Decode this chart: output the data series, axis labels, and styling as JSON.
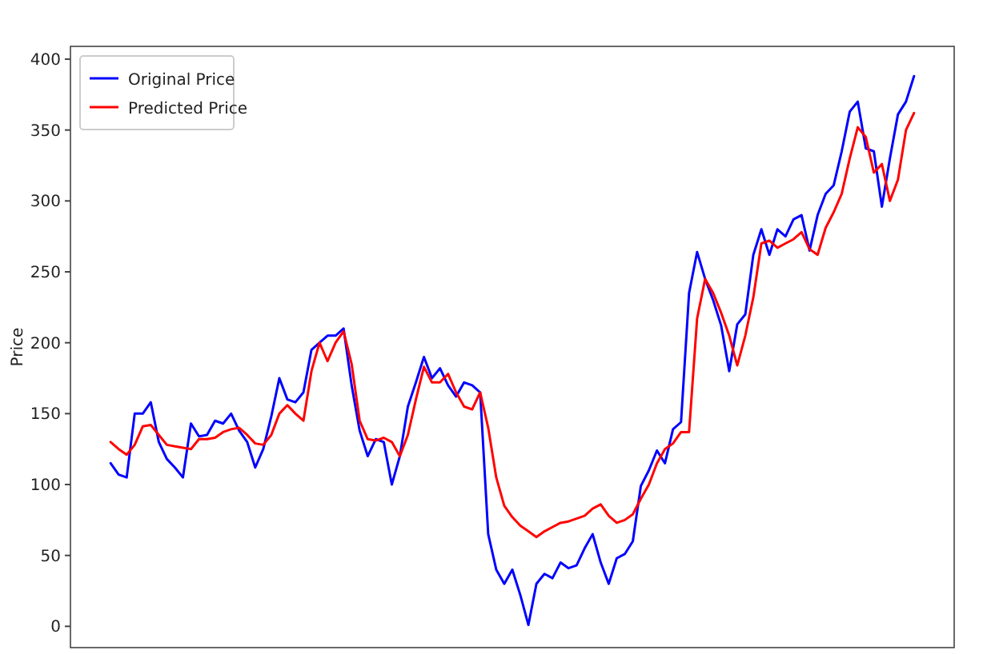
{
  "chart_data": {
    "type": "line",
    "ylabel": "Price",
    "categories": [
      null,
      null,
      null,
      null,
      null,
      null,
      null,
      null,
      null,
      null,
      null,
      null,
      null,
      null,
      null,
      null,
      null,
      null,
      null,
      null,
      null,
      null,
      null,
      null,
      null,
      null,
      null,
      null,
      null,
      null,
      null,
      null,
      null,
      null,
      null,
      null,
      null,
      null,
      null,
      null,
      null,
      null,
      null,
      null,
      null,
      null,
      null,
      null,
      null,
      null,
      null,
      null,
      null,
      null,
      null,
      null,
      null,
      null,
      null,
      null,
      null,
      null,
      null,
      null,
      null,
      null,
      null,
      null,
      null,
      null,
      null,
      null,
      null,
      null,
      null,
      null,
      null,
      null,
      null,
      null,
      null,
      null,
      null,
      null,
      null,
      null,
      null,
      null,
      null,
      null,
      null,
      null,
      null,
      null,
      null,
      null,
      null,
      null,
      null,
      null,
      null
    ],
    "series": [
      {
        "name": "Original Price",
        "color": "#0000ff",
        "values": [
          115,
          107,
          105,
          150,
          150,
          158,
          130,
          118,
          112,
          105,
          143,
          134,
          135,
          145,
          143,
          150,
          138,
          130,
          112,
          125,
          148,
          175,
          160,
          158,
          165,
          195,
          200,
          205,
          205,
          210,
          170,
          138,
          120,
          132,
          130,
          100,
          120,
          155,
          172,
          190,
          175,
          182,
          170,
          162,
          172,
          170,
          165,
          65,
          40,
          30,
          40,
          22,
          1,
          30,
          37,
          34,
          45,
          41,
          43,
          55,
          65,
          45,
          30,
          48,
          51,
          60,
          99,
          110,
          124,
          115,
          139,
          144,
          235,
          264,
          245,
          230,
          212,
          180,
          213,
          220,
          262,
          280,
          262,
          280,
          275,
          287,
          290,
          265,
          290,
          305,
          311,
          335,
          363,
          370,
          337,
          335,
          296,
          330,
          361,
          370,
          388
        ]
      },
      {
        "name": "Predicted Price",
        "color": "#ff0000",
        "values": [
          130,
          125,
          121,
          128,
          141,
          142,
          135,
          128,
          127,
          126,
          125,
          132,
          132,
          133,
          137,
          139,
          140,
          135,
          129,
          128,
          135,
          150,
          156,
          150,
          145,
          180,
          200,
          187,
          200,
          208,
          185,
          145,
          132,
          131,
          133,
          130,
          120,
          135,
          160,
          183,
          172,
          172,
          178,
          165,
          155,
          153,
          165,
          140,
          105,
          85,
          77,
          71,
          67,
          63,
          67,
          70,
          73,
          74,
          76,
          78,
          83,
          86,
          78,
          73,
          75,
          79,
          90,
          100,
          115,
          125,
          129,
          137,
          137,
          217,
          245,
          235,
          221,
          205,
          184,
          205,
          232,
          270,
          272,
          267,
          270,
          273,
          278,
          266,
          262,
          281,
          292,
          305,
          330,
          352,
          345,
          320,
          326,
          300,
          315,
          350,
          362
        ]
      }
    ],
    "ylim": [
      -15,
      409
    ],
    "yticks": [
      0,
      50,
      100,
      150,
      200,
      250,
      300,
      350,
      400
    ],
    "legend": "top left",
    "tick_labels": "y"
  }
}
